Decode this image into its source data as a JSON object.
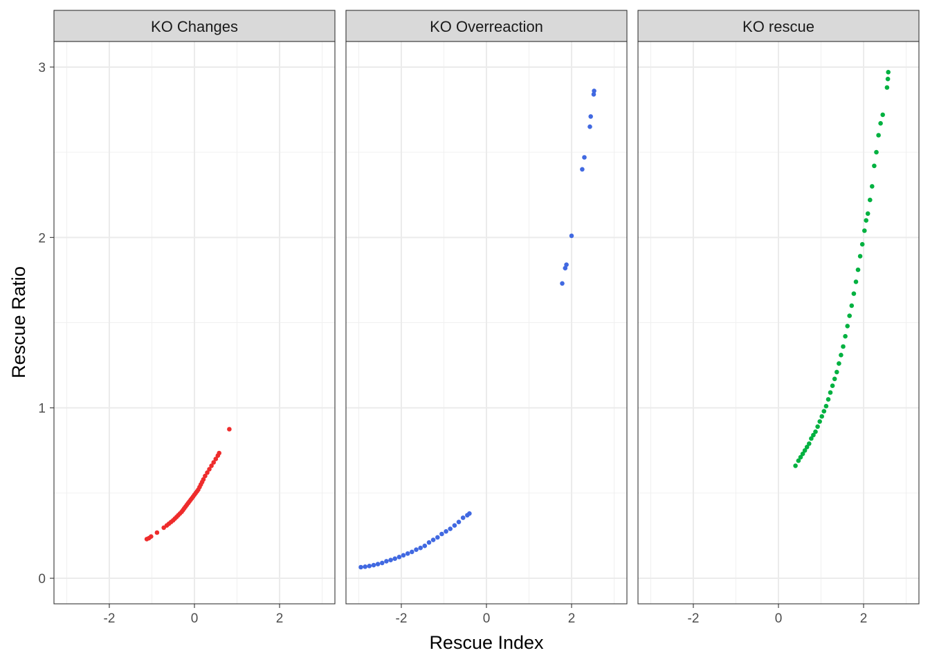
{
  "chart_data": {
    "type": "scatter",
    "xlabel": "Rescue Index",
    "ylabel": "Rescue Ratio",
    "xlim": [
      -3.3,
      3.3
    ],
    "ylim": [
      -0.15,
      3.15
    ],
    "x_ticks": [
      -2,
      0,
      2
    ],
    "x_tick_labels": [
      "-2",
      "0",
      "2"
    ],
    "y_ticks": [
      0,
      1,
      2,
      3
    ],
    "y_tick_labels": [
      "0",
      "1",
      "2",
      "3"
    ],
    "grid": true,
    "legend": "none",
    "facets": [
      "KO Changes",
      "KO Overreaction",
      "KO rescue"
    ],
    "series": [
      {
        "facet": "KO Changes",
        "color": "#ee2c2c",
        "points": [
          [
            -1.12,
            0.23
          ],
          [
            -1.07,
            0.235
          ],
          [
            -1.02,
            0.245
          ],
          [
            -0.88,
            0.268
          ],
          [
            -0.72,
            0.297
          ],
          [
            -0.65,
            0.31
          ],
          [
            -0.6,
            0.32
          ],
          [
            -0.55,
            0.33
          ],
          [
            -0.5,
            0.34
          ],
          [
            -0.46,
            0.35
          ],
          [
            -0.42,
            0.36
          ],
          [
            -0.38,
            0.37
          ],
          [
            -0.34,
            0.38
          ],
          [
            -0.3,
            0.39
          ],
          [
            -0.27,
            0.4
          ],
          [
            -0.24,
            0.41
          ],
          [
            -0.21,
            0.42
          ],
          [
            -0.18,
            0.43
          ],
          [
            -0.15,
            0.44
          ],
          [
            -0.12,
            0.45
          ],
          [
            -0.09,
            0.46
          ],
          [
            -0.06,
            0.47
          ],
          [
            -0.03,
            0.48
          ],
          [
            0.0,
            0.49
          ],
          [
            0.03,
            0.5
          ],
          [
            0.06,
            0.51
          ],
          [
            0.09,
            0.52
          ],
          [
            0.12,
            0.535
          ],
          [
            0.15,
            0.55
          ],
          [
            0.18,
            0.565
          ],
          [
            0.21,
            0.58
          ],
          [
            0.25,
            0.6
          ],
          [
            0.3,
            0.62
          ],
          [
            0.35,
            0.64
          ],
          [
            0.4,
            0.66
          ],
          [
            0.45,
            0.68
          ],
          [
            0.5,
            0.7
          ],
          [
            0.55,
            0.72
          ],
          [
            0.58,
            0.735
          ],
          [
            0.82,
            0.875
          ]
        ]
      },
      {
        "facet": "KO Overreaction",
        "color": "#4169e1",
        "points": [
          [
            -2.95,
            0.065
          ],
          [
            -2.85,
            0.068
          ],
          [
            -2.75,
            0.072
          ],
          [
            -2.65,
            0.077
          ],
          [
            -2.55,
            0.083
          ],
          [
            -2.45,
            0.09
          ],
          [
            -2.35,
            0.1
          ],
          [
            -2.25,
            0.107
          ],
          [
            -2.15,
            0.115
          ],
          [
            -2.05,
            0.125
          ],
          [
            -1.95,
            0.135
          ],
          [
            -1.85,
            0.145
          ],
          [
            -1.75,
            0.155
          ],
          [
            -1.65,
            0.168
          ],
          [
            -1.55,
            0.178
          ],
          [
            -1.45,
            0.19
          ],
          [
            -1.35,
            0.21
          ],
          [
            -1.25,
            0.225
          ],
          [
            -1.15,
            0.24
          ],
          [
            -1.05,
            0.26
          ],
          [
            -0.95,
            0.275
          ],
          [
            -0.85,
            0.29
          ],
          [
            -0.75,
            0.31
          ],
          [
            -0.65,
            0.33
          ],
          [
            -0.55,
            0.355
          ],
          [
            -0.45,
            0.37
          ],
          [
            -0.4,
            0.38
          ],
          [
            1.78,
            1.73
          ],
          [
            1.85,
            1.82
          ],
          [
            1.88,
            1.84
          ],
          [
            2.0,
            2.01
          ],
          [
            2.25,
            2.4
          ],
          [
            2.3,
            2.47
          ],
          [
            2.43,
            2.65
          ],
          [
            2.45,
            2.71
          ],
          [
            2.52,
            2.84
          ],
          [
            2.53,
            2.86
          ]
        ]
      },
      {
        "facet": "KO rescue",
        "color": "#00b140",
        "points": [
          [
            0.4,
            0.66
          ],
          [
            0.47,
            0.69
          ],
          [
            0.52,
            0.71
          ],
          [
            0.57,
            0.73
          ],
          [
            0.62,
            0.75
          ],
          [
            0.67,
            0.77
          ],
          [
            0.72,
            0.79
          ],
          [
            0.77,
            0.82
          ],
          [
            0.82,
            0.84
          ],
          [
            0.87,
            0.86
          ],
          [
            0.92,
            0.89
          ],
          [
            0.97,
            0.92
          ],
          [
            1.02,
            0.95
          ],
          [
            1.07,
            0.98
          ],
          [
            1.12,
            1.01
          ],
          [
            1.17,
            1.05
          ],
          [
            1.22,
            1.09
          ],
          [
            1.27,
            1.13
          ],
          [
            1.32,
            1.17
          ],
          [
            1.37,
            1.21
          ],
          [
            1.42,
            1.26
          ],
          [
            1.47,
            1.31
          ],
          [
            1.52,
            1.36
          ],
          [
            1.57,
            1.42
          ],
          [
            1.62,
            1.48
          ],
          [
            1.67,
            1.54
          ],
          [
            1.72,
            1.6
          ],
          [
            1.77,
            1.67
          ],
          [
            1.82,
            1.74
          ],
          [
            1.87,
            1.81
          ],
          [
            1.92,
            1.89
          ],
          [
            1.97,
            1.96
          ],
          [
            2.02,
            2.04
          ],
          [
            2.06,
            2.1
          ],
          [
            2.1,
            2.14
          ],
          [
            2.15,
            2.22
          ],
          [
            2.2,
            2.3
          ],
          [
            2.25,
            2.42
          ],
          [
            2.3,
            2.5
          ],
          [
            2.35,
            2.6
          ],
          [
            2.4,
            2.67
          ],
          [
            2.45,
            2.72
          ],
          [
            2.55,
            2.88
          ],
          [
            2.57,
            2.93
          ],
          [
            2.58,
            2.97
          ]
        ]
      }
    ]
  }
}
